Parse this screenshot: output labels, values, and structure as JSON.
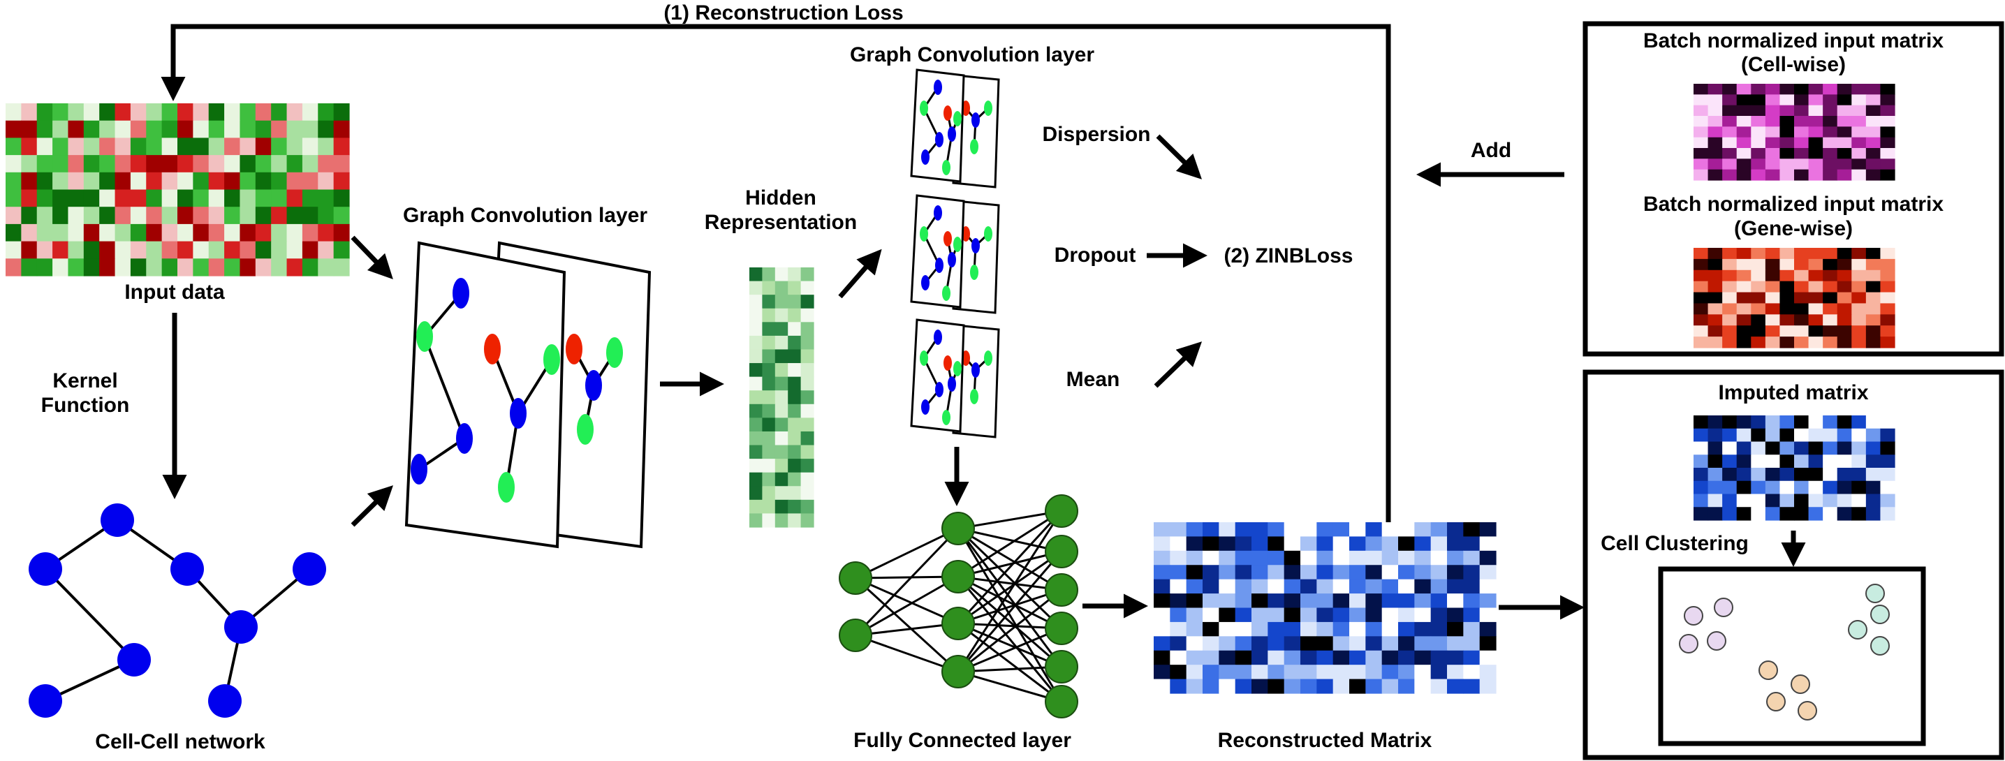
{
  "labels": {
    "reconstruction_loss": "(1) Reconstruction Loss",
    "input_data": "Input data",
    "kernel_function_1": "Kernel",
    "kernel_function_2": "Function",
    "cell_cell_network": "Cell-Cell network",
    "gcn_layer_main": "Graph Convolution layer",
    "hidden_1": "Hidden",
    "hidden_2": "Representation",
    "gcn_layer_top": "Graph Convolution layer",
    "dispersion": "Dispersion",
    "dropout": "Dropout",
    "mean": "Mean",
    "zinb_loss": "(2) ZINBLoss",
    "fully_connected": "Fully Connected layer",
    "reconstructed_matrix": "Reconstructed Matrix",
    "add": "Add",
    "batch_cell_1": "Batch normalized input matrix",
    "batch_cell_2": "(Cell-wise)",
    "batch_gene_1": "Batch normalized input matrix",
    "batch_gene_2": "(Gene-wise)",
    "imputed_matrix": "Imputed matrix",
    "cell_clustering": "Cell Clustering"
  },
  "colors": {
    "network_node": "#0000ee",
    "graph_green": "#22ee55",
    "graph_red": "#ee2200",
    "fc_node": "#2f8f1e",
    "cluster_purple": "#e8d8f0",
    "cluster_teal": "#c8ece0",
    "cluster_peach": "#f4d4b0"
  },
  "heatmaps": {
    "input_data": "red-green",
    "hidden_representation": "greens",
    "reconstructed_matrix": "blues",
    "batch_cell_wise": "magentas",
    "batch_gene_wise": "reds",
    "imputed_matrix": "blues"
  }
}
